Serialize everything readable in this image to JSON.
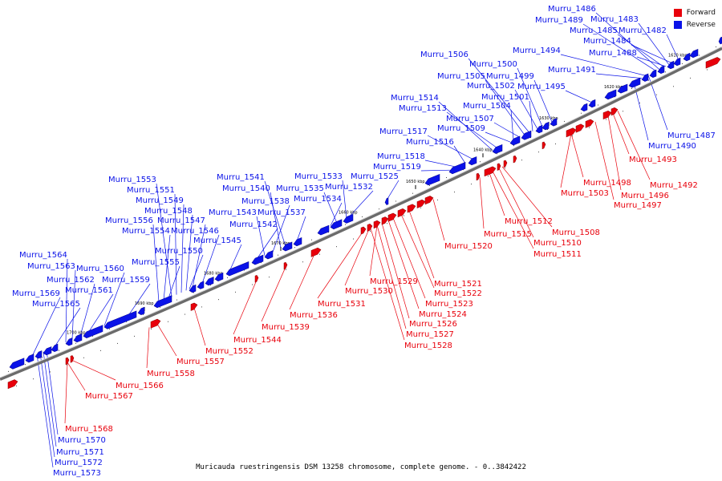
{
  "legend": {
    "forward": "Forward",
    "reverse": "Reverse",
    "forward_color": "#e8000b",
    "reverse_color": "#0a12e8"
  },
  "caption": "Muricauda ruestringensis DSM 13258 chromosome, complete genome. - 0..3842422",
  "ticks": [
    {
      "label": "1610 kbp",
      "kbp": 1610
    },
    {
      "label": "1620 kbp",
      "kbp": 1620
    },
    {
      "label": "1630 kbp",
      "kbp": 1630
    },
    {
      "label": "1640 kbp",
      "kbp": 1640
    },
    {
      "label": "1650 kbp",
      "kbp": 1650
    },
    {
      "label": "1660 kbp",
      "kbp": 1660
    },
    {
      "label": "1670 kbp",
      "kbp": 1670
    },
    {
      "label": "1680 kbp",
      "kbp": 1680
    },
    {
      "label": "1690 kbp",
      "kbp": 1690
    },
    {
      "label": "1700 kbp",
      "kbp": 1700
    }
  ],
  "reverse_genes": [
    "Murru_1486",
    "Murru_1489",
    "Murru_1483",
    "Murru_1485",
    "Murru_1482",
    "Murru_1484",
    "Murru_1488",
    "Murru_1494",
    "Murru_1491",
    "Murru_1506",
    "Murru_1500",
    "Murru_1505",
    "Murru_1499",
    "Murru_1502",
    "Murru_1495",
    "Murru_1501",
    "Murru_1514",
    "Murru_1513",
    "Murru_1504",
    "Murru_1507",
    "Murru_1509",
    "Murru_1517",
    "Murru_1516",
    "Murru_1518",
    "Murru_1519",
    "Murru_1525",
    "Murru_1533",
    "Murru_1541",
    "Murru_1535",
    "Murru_1532",
    "Murru_1540",
    "Murru_1538",
    "Murru_1534",
    "Murru_1553",
    "Murru_1551",
    "Murru_1549",
    "Murru_1548",
    "Murru_1543",
    "Murru_1537",
    "Murru_1542",
    "Murru_1556",
    "Murru_1547",
    "Murru_1554",
    "Murru_1546",
    "Murru_1545",
    "Murru_1550",
    "Murru_1555",
    "Murru_1564",
    "Murru_1563",
    "Murru_1560",
    "Murru_1562",
    "Murru_1559",
    "Murru_1561",
    "Murru_1569",
    "Murru_1565",
    "Murru_1487",
    "Murru_1490",
    "Murru_1570",
    "Murru_1571",
    "Murru_1572",
    "Murru_1573"
  ],
  "forward_genes": [
    "Murru_1493",
    "Murru_1492",
    "Murru_1498",
    "Murru_1496",
    "Murru_1503",
    "Murru_1497",
    "Murru_1512",
    "Murru_1508",
    "Murru_1515",
    "Murru_1510",
    "Murru_1511",
    "Murru_1520",
    "Murru_1521",
    "Murru_1529",
    "Murru_1522",
    "Murru_1530",
    "Murru_1523",
    "Murru_1531",
    "Murru_1524",
    "Murru_1536",
    "Murru_1526",
    "Murru_1539",
    "Murru_1527",
    "Murru_1544",
    "Murru_1528",
    "Murru_1552",
    "Murru_1557",
    "Murru_1558",
    "Murru_1566",
    "Murru_1567",
    "Murru_1568"
  ]
}
